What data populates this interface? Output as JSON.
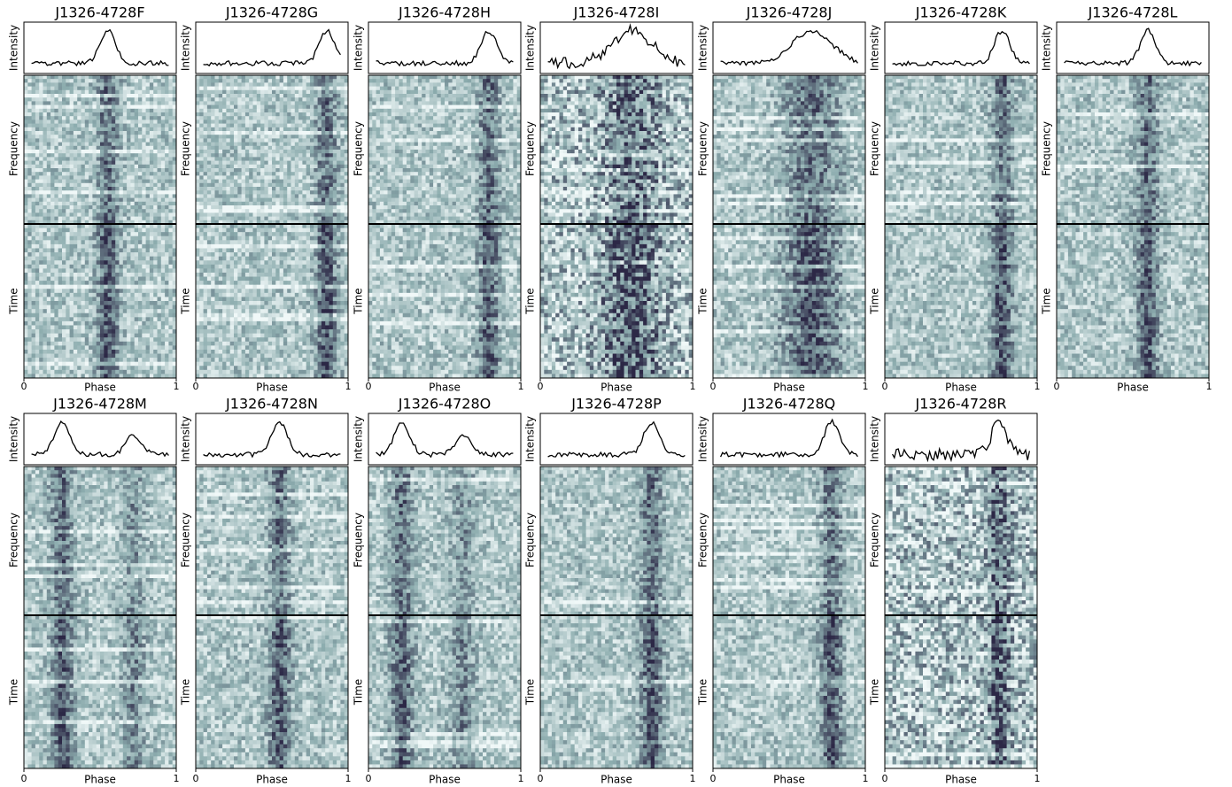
{
  "figure": {
    "x_label": "Phase",
    "y_labels": {
      "profile": "Intensity",
      "frequency": "Frequency",
      "time": "Time"
    },
    "xticks": [
      0,
      1
    ],
    "panels": [
      {
        "title": "J1326-4728F",
        "peaks": [
          0.55
        ]
      },
      {
        "title": "J1326-4728G",
        "peaks": [
          0.86
        ]
      },
      {
        "title": "J1326-4728H",
        "peaks": [
          0.79
        ]
      },
      {
        "title": "J1326-4728I",
        "peaks": [
          0.6
        ]
      },
      {
        "title": "J1326-4728J",
        "peaks": [
          0.65
        ]
      },
      {
        "title": "J1326-4728K",
        "peaks": [
          0.77
        ]
      },
      {
        "title": "J1326-4728L",
        "peaks": [
          0.6
        ]
      },
      {
        "title": "J1326-4728M",
        "peaks": [
          0.25,
          0.72
        ]
      },
      {
        "title": "J1326-4728N",
        "peaks": [
          0.55
        ]
      },
      {
        "title": "J1326-4728O",
        "peaks": [
          0.22,
          0.62
        ]
      },
      {
        "title": "J1326-4728P",
        "peaks": [
          0.73
        ]
      },
      {
        "title": "J1326-4728Q",
        "peaks": [
          0.78
        ]
      },
      {
        "title": "J1326-4728R",
        "peaks": [
          0.75
        ]
      }
    ]
  }
}
